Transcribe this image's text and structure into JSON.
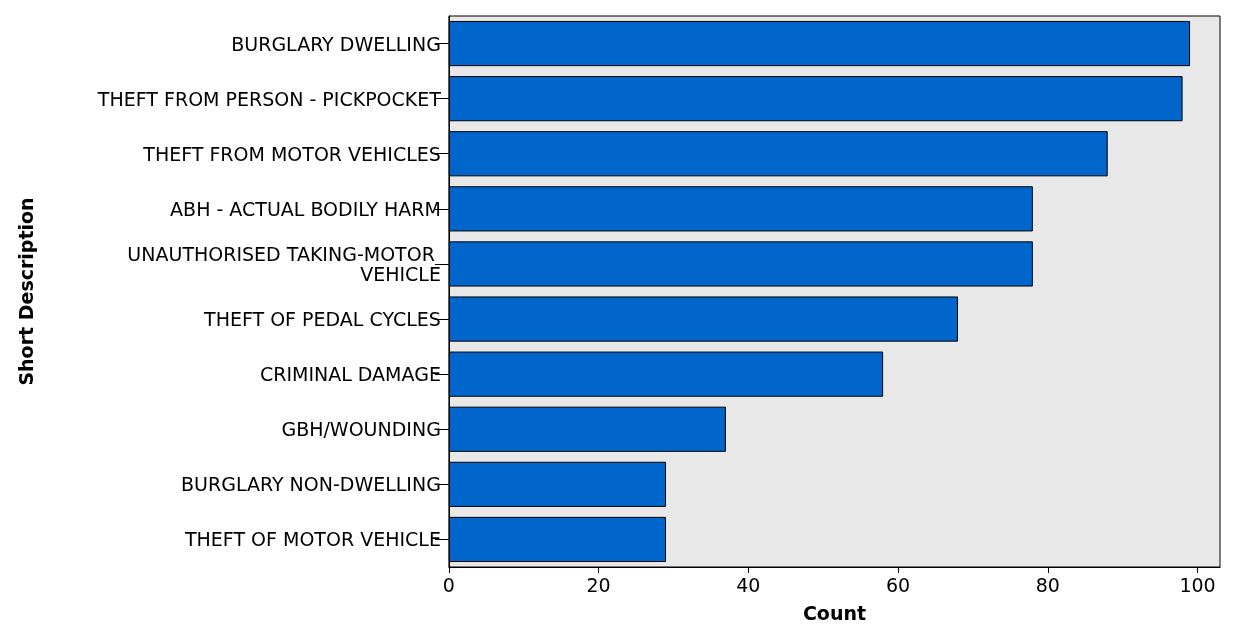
{
  "chart_data": {
    "type": "bar",
    "orientation": "horizontal",
    "xlabel": "Count",
    "ylabel": "Short Description",
    "categories": [
      "BURGLARY DWELLING",
      "THEFT FROM PERSON - PICKPOCKET",
      "THEFT FROM MOTOR VEHICLES",
      "ABH - ACTUAL BODILY HARM",
      "UNAUTHORISED TAKING-MOTOR VEHICLE",
      "THEFT OF PEDAL CYCLES",
      "CRIMINAL DAMAGE",
      "GBH/WOUNDING",
      "BURGLARY NON-DWELLING",
      "THEFT OF MOTOR VEHICLE"
    ],
    "values": [
      99,
      98,
      88,
      78,
      78,
      68,
      58,
      37,
      29,
      29
    ],
    "color": "#0066cc",
    "xlim": [
      0,
      103
    ],
    "xticks": [
      0,
      20,
      40,
      60,
      80,
      100
    ],
    "grid": false
  }
}
